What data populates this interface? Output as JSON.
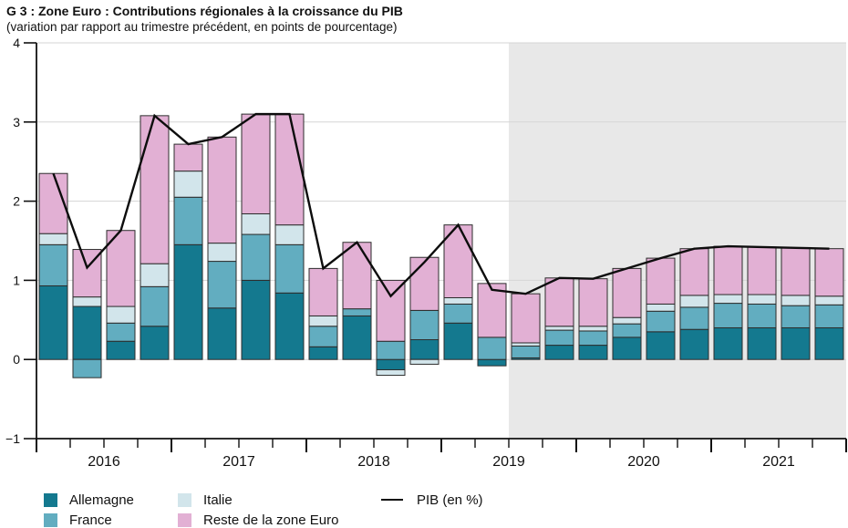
{
  "title": "G 3 : Zone Euro : Contributions régionales à la croissance du PIB",
  "subtitle": "(variation par rapport au trimestre précédent, en points de pourcentage)",
  "legend": {
    "items": [
      {
        "label": "Allemagne",
        "color": "#14798f"
      },
      {
        "label": "France",
        "color": "#62adc0"
      },
      {
        "label": "Italie",
        "color": "#d2e5eb"
      },
      {
        "label": "Reste de la zone Euro",
        "color": "#e2b0d4"
      }
    ],
    "line_item": {
      "label": "PIB (en %)",
      "color": "#0d0d0d"
    }
  },
  "chart_data": {
    "type": "bar",
    "stacked": true,
    "x": [
      "2016T1",
      "2016T2",
      "2016T3",
      "2016T4",
      "2017T1",
      "2017T2",
      "2017T3",
      "2017T4",
      "2018T1",
      "2018T2",
      "2018T3",
      "2018T4",
      "2019T1",
      "2019T2",
      "2019T3",
      "2019T4",
      "2020T1",
      "2020T2",
      "2020T3",
      "2020T4",
      "2021T1",
      "2021T2",
      "2021T3",
      "2021T4"
    ],
    "years": [
      "2016",
      "2017",
      "2018",
      "2019",
      "2020",
      "2021"
    ],
    "series": [
      {
        "name": "Allemagne",
        "color": "#14798f",
        "values": [
          0.93,
          0.67,
          0.23,
          0.42,
          1.45,
          0.65,
          1.0,
          0.84,
          0.16,
          0.55,
          -0.13,
          0.25,
          0.46,
          -0.08,
          0.02,
          0.18,
          0.18,
          0.28,
          0.35,
          0.38,
          0.4,
          0.4,
          0.4,
          0.4
        ]
      },
      {
        "name": "France",
        "color": "#62adc0",
        "values": [
          0.52,
          -0.23,
          0.23,
          0.5,
          0.6,
          0.59,
          0.58,
          0.61,
          0.26,
          0.09,
          0.23,
          0.37,
          0.24,
          0.28,
          0.15,
          0.19,
          0.18,
          0.17,
          0.26,
          0.28,
          0.31,
          0.3,
          0.28,
          0.29
        ]
      },
      {
        "name": "Italie",
        "color": "#d2e5eb",
        "values": [
          0.14,
          0.12,
          0.21,
          0.29,
          0.33,
          0.23,
          0.26,
          0.25,
          0.13,
          0.0,
          -0.07,
          -0.06,
          0.08,
          0.0,
          0.04,
          0.05,
          0.06,
          0.08,
          0.09,
          0.15,
          0.11,
          0.12,
          0.13,
          0.11
        ]
      },
      {
        "name": "Reste de la zone Euro",
        "color": "#e2b0d4",
        "values": [
          0.76,
          0.6,
          0.96,
          1.87,
          0.34,
          1.34,
          1.26,
          1.4,
          0.6,
          0.84,
          0.77,
          0.67,
          0.92,
          0.68,
          0.62,
          0.61,
          0.6,
          0.62,
          0.58,
          0.59,
          0.61,
          0.6,
          0.6,
          0.6
        ]
      }
    ],
    "line": {
      "name": "PIB (en %)",
      "values": [
        2.35,
        1.16,
        1.63,
        3.08,
        2.72,
        2.81,
        3.1,
        3.1,
        1.15,
        1.48,
        0.8,
        1.23,
        1.7,
        0.88,
        0.83,
        1.03,
        1.02,
        1.15,
        1.28,
        1.4,
        1.43,
        1.42,
        1.41,
        1.4
      ]
    },
    "ylim": [
      -1,
      4
    ],
    "yticks": [
      -1,
      0,
      1,
      2,
      3,
      4
    ],
    "ytick_labels": [
      "−1",
      "0",
      "1",
      "2",
      "3",
      "4"
    ],
    "forecast_start_index": 14,
    "forecast_bg": "#e8e8e8",
    "grid_color": "#d6d6d6",
    "legend_position": "bottom"
  }
}
